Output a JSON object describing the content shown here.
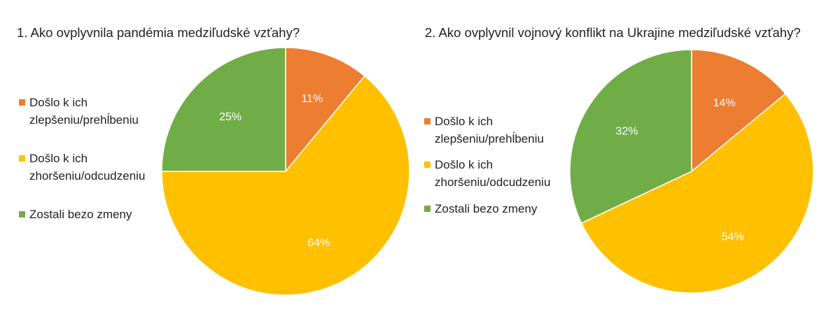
{
  "chart_data": [
    {
      "type": "pie",
      "title": "1. Ako ovplyvnila pandémia medziľudské vzťahy?",
      "categories": [
        "Došlo k ich zlepšeniu/prehĺbeniu",
        "Došlo k ich zhoršeniu/odcudzeniu",
        "Zostali bezo zmeny"
      ],
      "legend_lines": [
        [
          "Došlo k ich",
          "zlepšeniu/prehĺbeniu"
        ],
        [
          "Došlo k ich",
          "zhoršeniu/odcudzeniu"
        ],
        [
          "Zostali bezo zmeny"
        ]
      ],
      "values": [
        11,
        64,
        25
      ],
      "data_labels": [
        "11%",
        "64%",
        "25%"
      ],
      "colors": [
        "#ED7D31",
        "#FFC000",
        "#70AD47"
      ],
      "legend_position": "left"
    },
    {
      "type": "pie",
      "title": "2. Ako ovplyvnil vojnový konflikt na Ukrajine medziľudské vzťahy?",
      "categories": [
        "Došlo k ich zlepšeniu/prehĺbeniu",
        "Došlo k ich zhoršeniu/odcudzeniu",
        "Zostali bezo zmeny"
      ],
      "legend_lines": [
        [
          "Došlo k ich",
          "zlepšeniu/prehĺbeniu"
        ],
        [
          "Došlo k ich",
          "zhoršeniu/odcudzeniu"
        ],
        [
          "Zostali bezo zmeny"
        ]
      ],
      "values": [
        14,
        54,
        32
      ],
      "data_labels": [
        "14%",
        "54%",
        "32%"
      ],
      "colors": [
        "#ED7D31",
        "#FFC000",
        "#70AD47"
      ],
      "legend_position": "left"
    }
  ]
}
